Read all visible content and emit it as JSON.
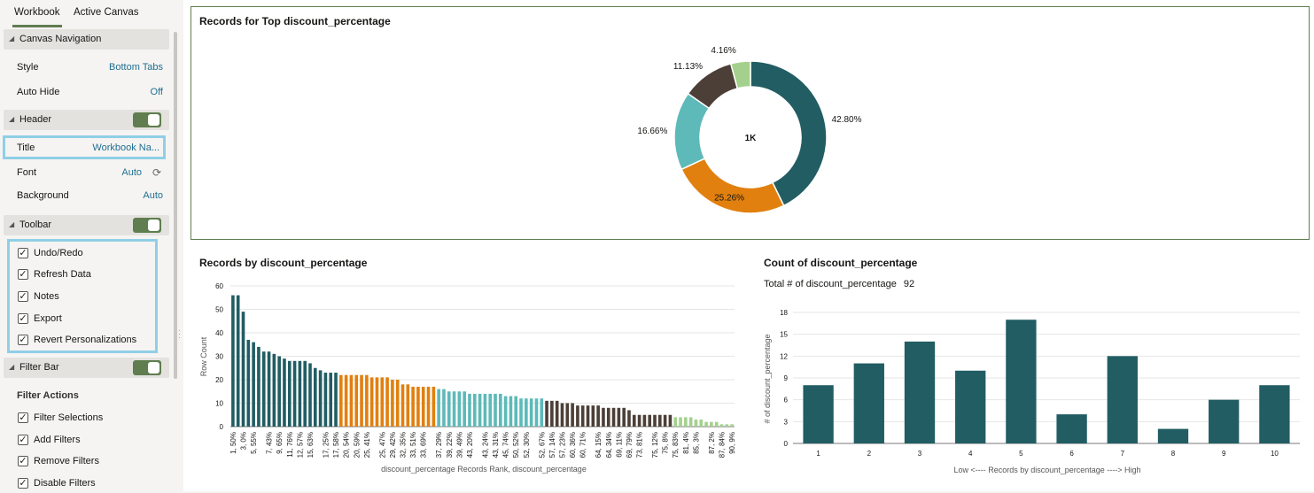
{
  "panel": {
    "tabs": [
      {
        "label": "Workbook",
        "active": true
      },
      {
        "label": "Active Canvas",
        "active": false
      }
    ],
    "canvas_navigation": {
      "label": "Canvas Navigation",
      "style_label": "Style",
      "style_value": "Bottom Tabs",
      "autohide_label": "Auto Hide",
      "autohide_value": "Off"
    },
    "header": {
      "label": "Header",
      "enabled": true,
      "title_label": "Title",
      "title_value": "Workbook Na...",
      "font_label": "Font",
      "font_value": "Auto",
      "background_label": "Background",
      "background_value": "Auto"
    },
    "toolbar": {
      "label": "Toolbar",
      "enabled": true,
      "items": [
        {
          "label": "Undo/Redo",
          "checked": true
        },
        {
          "label": "Refresh Data",
          "checked": true
        },
        {
          "label": "Notes",
          "checked": true
        },
        {
          "label": "Export",
          "checked": true
        },
        {
          "label": "Revert Personalizations",
          "checked": true
        }
      ]
    },
    "filter_bar": {
      "label": "Filter Bar",
      "enabled": true,
      "actions_label": "Filter Actions",
      "items": [
        {
          "label": "Filter Selections",
          "checked": true
        },
        {
          "label": "Add Filters",
          "checked": true
        },
        {
          "label": "Remove Filters",
          "checked": true
        },
        {
          "label": "Disable Filters",
          "checked": true
        }
      ]
    }
  },
  "colors": {
    "teal_dark": "#215d63",
    "orange": "#e1800f",
    "teal_light": "#5dbab9",
    "brown": "#4c3f37",
    "green_light": "#a3d18d",
    "accent_toggle": "#5f7d4f",
    "highlight": "#8fcfe6"
  },
  "chart_data": [
    {
      "type": "pie",
      "title": "Records for Top discount_percentage",
      "center_label": "1K",
      "slices": [
        {
          "label": "42.80%",
          "value": 42.8,
          "color": "#215d63"
        },
        {
          "label": "25.26%",
          "value": 25.26,
          "color": "#e1800f"
        },
        {
          "label": "16.66%",
          "value": 16.66,
          "color": "#5dbab9"
        },
        {
          "label": "11.13%",
          "value": 11.13,
          "color": "#4c3f37"
        },
        {
          "label": "4.16%",
          "value": 4.16,
          "color": "#a3d18d"
        }
      ]
    },
    {
      "type": "bar",
      "title": "Records by discount_percentage",
      "xlabel": "discount_percentage Records Rank, discount_percentage",
      "ylabel": "Row Count",
      "ylim": [
        0,
        60
      ],
      "yticks": [
        "0",
        "10",
        "20",
        "30",
        "40",
        "50",
        "60"
      ],
      "values": [
        56,
        56,
        49,
        37,
        36,
        34,
        32,
        32,
        31,
        30,
        29,
        28,
        28,
        28,
        28,
        27,
        25,
        24,
        23,
        23,
        23,
        22,
        22,
        22,
        22,
        22,
        22,
        21,
        21,
        21,
        21,
        20,
        20,
        18,
        18,
        17,
        17,
        17,
        17,
        17,
        16,
        16,
        15,
        15,
        15,
        15,
        14,
        14,
        14,
        14,
        14,
        14,
        14,
        13,
        13,
        13,
        12,
        12,
        12,
        12,
        12,
        11,
        11,
        11,
        10,
        10,
        10,
        9,
        9,
        9,
        9,
        9,
        8,
        8,
        8,
        8,
        8,
        7,
        5,
        5,
        5,
        5,
        5,
        5,
        5,
        5,
        4,
        4,
        4,
        4,
        3,
        3,
        2,
        2,
        2,
        1,
        1,
        1
      ],
      "bar_color_groups": [
        {
          "color": "#215d63",
          "count": 21
        },
        {
          "color": "#e1800f",
          "count": 19
        },
        {
          "color": "#5dbab9",
          "count": 21
        },
        {
          "color": "#4c3f37",
          "count": 25
        },
        {
          "color": "#a3d18d",
          "count": 12
        }
      ],
      "tick_labels": [
        "1, 50%",
        "3, 0%",
        "5, 55%",
        "7, 43%",
        "9, 65%",
        "11, 76%",
        "12, 57%",
        "15, 63%",
        "17, 25%",
        "17, 58%",
        "20, 54%",
        "20, 59%",
        "25, 41%",
        "25, 47%",
        "29, 42%",
        "32, 35%",
        "33, 51%",
        "33, 69%",
        "37, 29%",
        "39, 22%",
        "39, 49%",
        "43, 20%",
        "43, 24%",
        "43, 31%",
        "45, 74%",
        "50, 52%",
        "52, 30%",
        "52, 67%",
        "57, 14%",
        "57, 23%",
        "60, 36%",
        "60, 71%",
        "64, 15%",
        "64, 34%",
        "69, 11%",
        "69, 79%",
        "73, 81%",
        "75, 12%",
        "75, 8%",
        "75, 83%",
        "81, 4%",
        "85, 3%",
        "87, 2%",
        "87, 84%",
        "90, 9%"
      ]
    },
    {
      "type": "bar",
      "title": "Count of discount_percentage",
      "total_label": "Total # of discount_percentage",
      "total_value": "92",
      "categories": [
        "1",
        "2",
        "3",
        "4",
        "5",
        "6",
        "7",
        "8",
        "9",
        "10"
      ],
      "values": [
        8,
        11,
        14,
        10,
        17,
        4,
        12,
        2,
        6,
        8
      ],
      "color": "#215d63",
      "xlabel": "Low <---- Records by discount_percentage ----> High",
      "ylabel": "# of discount_percentage",
      "ylim": [
        0,
        18
      ],
      "yticks": [
        "0",
        "3",
        "6",
        "9",
        "12",
        "15",
        "18"
      ]
    }
  ]
}
